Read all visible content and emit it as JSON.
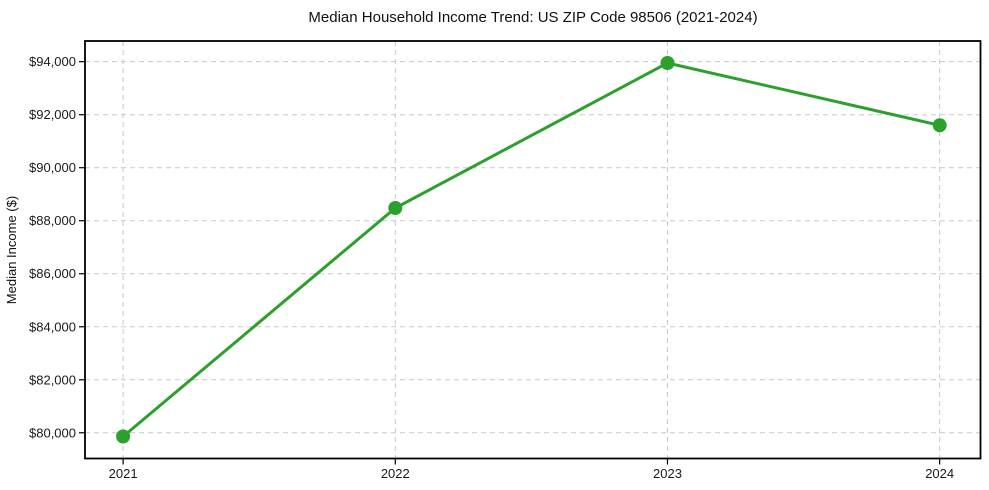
{
  "chart_data": {
    "type": "line",
    "title": "Median Household Income Trend: US ZIP Code 98506 (2021-2024)",
    "xlabel": "",
    "ylabel": "Median Income ($)",
    "x": [
      2021,
      2022,
      2023,
      2024
    ],
    "xtick_labels": [
      "2021",
      "2022",
      "2023",
      "2024"
    ],
    "series": [
      {
        "name": "Median household income",
        "values": [
          79860,
          88480,
          93950,
          91600
        ]
      }
    ],
    "yticks": [
      80000,
      82000,
      84000,
      86000,
      88000,
      90000,
      92000,
      94000
    ],
    "ytick_labels": [
      "$80,000",
      "$82,000",
      "$84,000",
      "$86,000",
      "$88,000",
      "$90,000",
      "$92,000",
      "$94,000"
    ],
    "xlim": [
      2020.86,
      2024.15
    ],
    "ylim": [
      79030,
      94780
    ],
    "grid": true,
    "grid_style": "dashed",
    "legend_position": "none",
    "line_color": "#2ca02c",
    "marker": "circle",
    "marker_radius": 7,
    "background_color": "#ffffff"
  }
}
